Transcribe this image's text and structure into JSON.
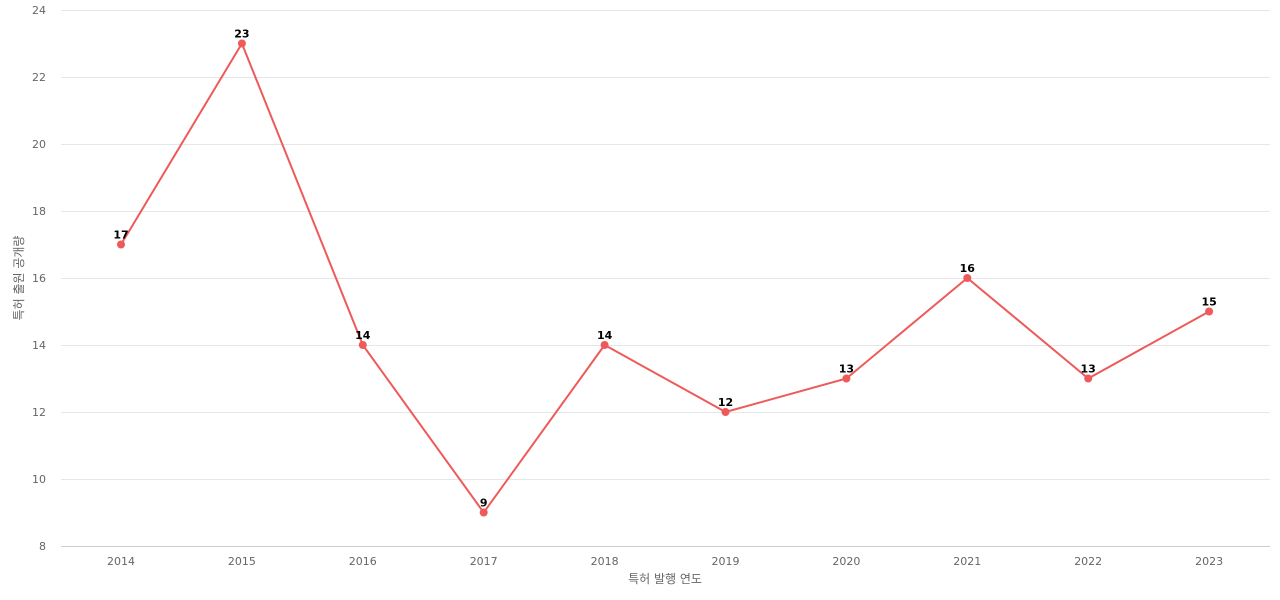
{
  "chart_data": {
    "type": "line",
    "title": "",
    "xlabel": "특허 발행 연도",
    "ylabel": "특허 출원 공개량",
    "categories": [
      "2014",
      "2015",
      "2016",
      "2017",
      "2018",
      "2019",
      "2020",
      "2021",
      "2022",
      "2023"
    ],
    "series": [
      {
        "values": [
          17,
          23,
          14,
          9,
          14,
          12,
          13,
          16,
          13,
          15
        ],
        "color": "#ee5a5a"
      }
    ],
    "ylim": [
      8,
      24
    ],
    "yticks": [
      8,
      10,
      12,
      14,
      16,
      18,
      20,
      22,
      24
    ],
    "grid": true,
    "data_labels": true
  }
}
